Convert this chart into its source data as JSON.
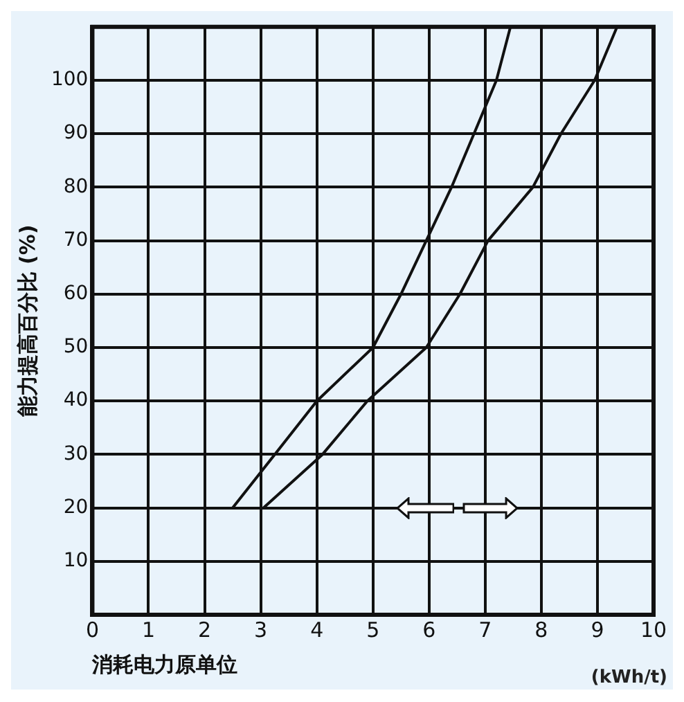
{
  "chart_data": {
    "type": "line",
    "xlabel": "消耗电力原单位",
    "ylabel": "能力提高百分比 (%)",
    "annotations": [
      "(kWh/t)"
    ],
    "series": [
      {
        "color": "#111111",
        "x": [
          2.5,
          3.25,
          4.0,
          5.0,
          5.5,
          5.95,
          6.4,
          6.8,
          7.2,
          7.45
        ],
        "values": [
          20,
          30,
          40,
          50,
          60,
          70,
          80,
          90,
          100,
          110
        ]
      },
      {
        "color": "#111111",
        "x": [
          3.05,
          4.1,
          4.9,
          5.95,
          6.55,
          7.05,
          7.85,
          8.35,
          8.95,
          9.35
        ],
        "values": [
          20,
          30,
          40,
          50,
          60,
          70,
          80,
          90,
          100,
          110
        ]
      }
    ],
    "xlim": [
      0,
      10
    ],
    "xticks": [
      0,
      1,
      2,
      3,
      4,
      5,
      6,
      7,
      8,
      9,
      10
    ],
    "ylim": [
      0,
      110
    ],
    "yticks": [
      10,
      20,
      30,
      40,
      50,
      60,
      70,
      80,
      90,
      100
    ],
    "grid": true,
    "legend": false,
    "marker": "none",
    "line_style": "solid"
  }
}
